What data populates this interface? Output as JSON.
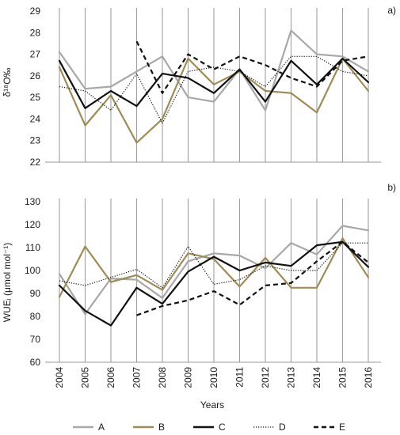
{
  "chart_data": [
    {
      "panel_label": "a)",
      "type": "line",
      "ylabel": "δ¹⁸O‰",
      "ylim": [
        22,
        29
      ],
      "yticks": [
        "22",
        "23",
        "24",
        "25",
        "26",
        "27",
        "28",
        "29"
      ],
      "grid": "vertical",
      "series": [
        {
          "name": "A",
          "color": "#a8a8a8",
          "dash": "solid",
          "x": [
            2004,
            2005,
            2006,
            2007,
            2008,
            2009,
            2010,
            2011,
            2012,
            2013,
            2014,
            2015,
            2016
          ],
          "values": [
            27.1,
            25.4,
            25.5,
            26.2,
            26.9,
            25.0,
            24.8,
            26.3,
            24.4,
            28.1,
            27.0,
            26.9,
            26.2
          ]
        },
        {
          "name": "B",
          "color": "#9e8c55",
          "dash": "solid",
          "x": [
            2004,
            2005,
            2006,
            2007,
            2008,
            2009,
            2010,
            2011,
            2012,
            2013,
            2014,
            2015,
            2016
          ],
          "values": [
            26.4,
            23.7,
            25.1,
            22.9,
            24.0,
            26.8,
            25.6,
            26.2,
            25.3,
            25.2,
            24.3,
            26.8,
            25.3
          ]
        },
        {
          "name": "C",
          "color": "#111111",
          "dash": "solid",
          "x": [
            2004,
            2005,
            2006,
            2007,
            2008,
            2009,
            2010,
            2011,
            2012,
            2013,
            2014,
            2015,
            2016
          ],
          "values": [
            26.7,
            24.5,
            25.3,
            24.6,
            26.1,
            25.9,
            25.2,
            26.3,
            24.8,
            26.7,
            25.6,
            26.8,
            25.7
          ]
        },
        {
          "name": "D",
          "color": "#111111",
          "dash": "dotted",
          "x": [
            2004,
            2005,
            2006,
            2007,
            2008,
            2009,
            2010,
            2011,
            2012,
            2013,
            2014,
            2015,
            2016
          ],
          "values": [
            25.5,
            25.3,
            24.4,
            26.1,
            23.8,
            26.2,
            26.4,
            26.2,
            25.5,
            26.9,
            26.9,
            26.2,
            26.0
          ]
        },
        {
          "name": "E",
          "color": "#111111",
          "dash": "dashed",
          "x": [
            2007,
            2008,
            2009,
            2010,
            2011,
            2012,
            2013,
            2014,
            2015,
            2016
          ],
          "values": [
            27.6,
            25.2,
            27.0,
            26.3,
            26.9,
            26.5,
            25.9,
            25.5,
            26.7,
            26.9
          ]
        }
      ]
    },
    {
      "panel_label": "b)",
      "type": "line",
      "ylabel": "WUEᵢ (μmol mol⁻¹)",
      "xlabel": "Years",
      "ylim": [
        60,
        130
      ],
      "yticks": [
        "60",
        "70",
        "80",
        "90",
        "100",
        "110",
        "120",
        "130"
      ],
      "categories": [
        "2004",
        "2005",
        "2006",
        "2007",
        "2008",
        "2009",
        "2010",
        "2011",
        "2012",
        "2013",
        "2014",
        "2015",
        "2016"
      ],
      "grid": "vertical",
      "series": [
        {
          "name": "A",
          "color": "#a8a8a8",
          "dash": "solid",
          "x": [
            2004,
            2005,
            2006,
            2007,
            2008,
            2009,
            2010,
            2011,
            2012,
            2013,
            2014,
            2015,
            2016
          ],
          "values": [
            98.5,
            81.0,
            96.5,
            96.0,
            88.0,
            104.0,
            107.5,
            106.5,
            101.0,
            112.0,
            107.0,
            119.5,
            117.5
          ]
        },
        {
          "name": "B",
          "color": "#9e8c55",
          "dash": "solid",
          "x": [
            2004,
            2005,
            2006,
            2007,
            2008,
            2009,
            2010,
            2011,
            2012,
            2013,
            2014,
            2015,
            2016
          ],
          "values": [
            88.5,
            110.5,
            95.0,
            98.0,
            91.5,
            107.5,
            105.0,
            93.0,
            105.5,
            92.5,
            92.5,
            114.0,
            97.0
          ]
        },
        {
          "name": "C",
          "color": "#111111",
          "dash": "solid",
          "x": [
            2004,
            2005,
            2006,
            2007,
            2008,
            2009,
            2010,
            2011,
            2012,
            2013,
            2014,
            2015,
            2016
          ],
          "values": [
            93.5,
            82.5,
            76.0,
            92.5,
            85.5,
            99.5,
            106.0,
            100.0,
            103.5,
            102.0,
            111.0,
            112.5,
            101.5
          ]
        },
        {
          "name": "D",
          "color": "#111111",
          "dash": "dotted",
          "x": [
            2004,
            2005,
            2006,
            2007,
            2008,
            2009,
            2010,
            2011,
            2012,
            2013,
            2014,
            2015,
            2016
          ],
          "values": [
            95.5,
            93.5,
            97.0,
            100.5,
            92.5,
            110.5,
            94.0,
            96.0,
            102.0,
            100.0,
            100.0,
            112.0,
            112.0
          ]
        },
        {
          "name": "E",
          "color": "#111111",
          "dash": "dashed",
          "x": [
            2007,
            2008,
            2009,
            2010,
            2011,
            2012,
            2013,
            2014,
            2015,
            2016
          ],
          "values": [
            80.5,
            84.5,
            87.0,
            91.0,
            85.0,
            93.5,
            94.5,
            104.0,
            112.5,
            103.5
          ]
        }
      ]
    }
  ],
  "legend": {
    "placement": "bottom",
    "items": [
      {
        "label": "A",
        "color": "#a8a8a8",
        "dash": "solid"
      },
      {
        "label": "B",
        "color": "#9e8c55",
        "dash": "solid"
      },
      {
        "label": "C",
        "color": "#111111",
        "dash": "solid"
      },
      {
        "label": "D",
        "color": "#111111",
        "dash": "dotted"
      },
      {
        "label": "E",
        "color": "#111111",
        "dash": "dashed"
      }
    ]
  }
}
